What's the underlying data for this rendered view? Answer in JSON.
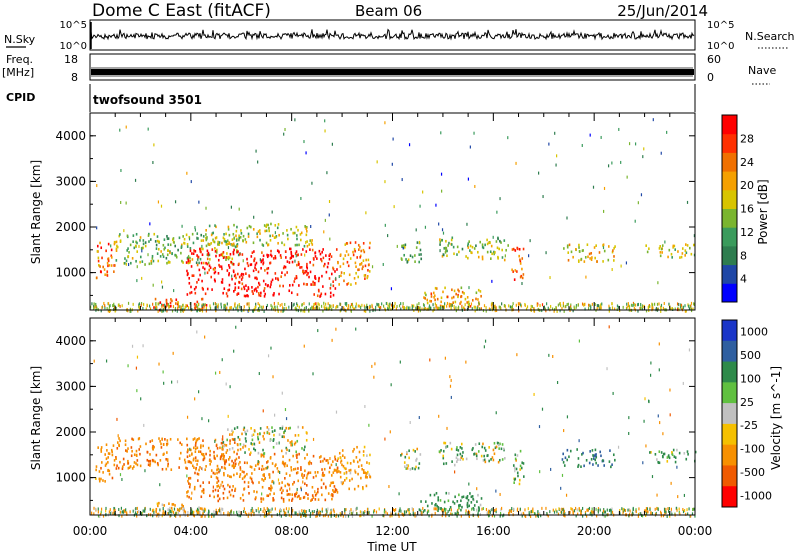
{
  "header": {
    "title": "Dome C East (fitACF)",
    "beam": "Beam 06",
    "date": "25/Jun/2014"
  },
  "time_axis": {
    "label": "Time UT",
    "ticks": [
      "00:00",
      "04:00",
      "08:00",
      "12:00",
      "16:00",
      "20:00",
      "00:00"
    ]
  },
  "status_panels": {
    "nsky": {
      "label": "N.Sky",
      "left_ticks": [
        "10^5",
        "10^0"
      ],
      "right_ticks": [
        "10^5",
        "10^0"
      ],
      "right_label": "N.Search"
    },
    "freq": {
      "label": "Freq.",
      "unit": "[MHz]",
      "left_ticks": [
        "18",
        "8"
      ],
      "right_ticks": [
        "60",
        "0"
      ],
      "right_label": "Nave"
    },
    "cpid": {
      "label": "CPID",
      "value": "twofsound 3501"
    }
  },
  "chart_data": [
    {
      "type": "heatmap",
      "title": "",
      "xlabel": "Time UT",
      "ylabel": "Slant Range [km]",
      "xlim": [
        0,
        24
      ],
      "ylim": [
        180,
        4500
      ],
      "yticks": [
        1000,
        2000,
        3000,
        4000
      ],
      "colorbar": {
        "label": "Power [dB]",
        "ticks": [
          "4",
          "8",
          "12",
          "16",
          "20",
          "24",
          "28"
        ],
        "range": [
          0,
          32
        ],
        "colors": [
          "#0000ff",
          "#1f47a6",
          "#2e7d4f",
          "#3a9b5c",
          "#7ab52f",
          "#d8c400",
          "#f5a000",
          "#f07000",
          "#ff3000",
          "#ff0000"
        ]
      },
      "echo_regions": [
        {
          "t0": 0.2,
          "t1": 1.0,
          "r0": 900,
          "r1": 1750,
          "level": 0.75
        },
        {
          "t0": 1.0,
          "t1": 6.0,
          "r0": 1200,
          "r1": 1900,
          "level": 0.45
        },
        {
          "t0": 3.8,
          "t1": 9.8,
          "r0": 500,
          "r1": 1550,
          "level": 0.95
        },
        {
          "t0": 9.8,
          "t1": 11.1,
          "r0": 750,
          "r1": 1700,
          "level": 0.7
        },
        {
          "t0": 4.5,
          "t1": 8.8,
          "r0": 1600,
          "r1": 2100,
          "level": 0.5
        },
        {
          "t0": 2.5,
          "t1": 4.6,
          "r0": 200,
          "r1": 480,
          "level": 0.85
        },
        {
          "t0": 13.0,
          "t1": 15.5,
          "r0": 230,
          "r1": 700,
          "level": 0.65
        },
        {
          "t0": 13.8,
          "t1": 16.6,
          "r0": 1300,
          "r1": 1800,
          "level": 0.45
        },
        {
          "t0": 16.7,
          "t1": 17.2,
          "r0": 850,
          "r1": 1650,
          "level": 0.8
        },
        {
          "t0": 18.7,
          "t1": 20.8,
          "r0": 1250,
          "r1": 1650,
          "level": 0.6
        },
        {
          "t0": 22.0,
          "t1": 24.0,
          "r0": 1350,
          "r1": 1650,
          "level": 0.5
        },
        {
          "t0": 12.3,
          "t1": 13.2,
          "r0": 1200,
          "r1": 1700,
          "level": 0.35
        }
      ]
    },
    {
      "type": "heatmap",
      "title": "",
      "xlabel": "Time UT",
      "ylabel": "Slant Range [km]",
      "xlim": [
        0,
        24
      ],
      "ylim": [
        180,
        4500
      ],
      "yticks": [
        1000,
        2000,
        3000,
        4000
      ],
      "colorbar": {
        "label": "Velocity [m s^-1]",
        "ticks": [
          "1000",
          "500",
          "100",
          "25",
          "-25",
          "-100",
          "-500",
          "-1000"
        ],
        "colors": [
          "#1a35c8",
          "#2f5fa0",
          "#2e8a4a",
          "#60c040",
          "#c0c0c0",
          "#f5c000",
          "#f79000",
          "#f05a00",
          "#ff0000"
        ]
      },
      "echo_regions": [
        {
          "t0": 0.2,
          "t1": 1.0,
          "r0": 900,
          "r1": 1750,
          "velocity": -200
        },
        {
          "t0": 1.0,
          "t1": 6.0,
          "r0": 1200,
          "r1": 1900,
          "velocity": -250
        },
        {
          "t0": 3.8,
          "t1": 9.8,
          "r0": 500,
          "r1": 1550,
          "velocity": -250
        },
        {
          "t0": 9.8,
          "t1": 11.1,
          "r0": 750,
          "r1": 1700,
          "velocity": -150
        },
        {
          "t0": 5.2,
          "t1": 8.6,
          "r0": 1550,
          "r1": 2150,
          "velocity": 0
        },
        {
          "t0": 2.5,
          "t1": 4.6,
          "r0": 200,
          "r1": 480,
          "velocity": -120
        },
        {
          "t0": 13.0,
          "t1": 15.5,
          "r0": 230,
          "r1": 700,
          "velocity": 150
        },
        {
          "t0": 13.8,
          "t1": 16.6,
          "r0": 1300,
          "r1": 1800,
          "velocity": 60
        },
        {
          "t0": 16.7,
          "t1": 17.2,
          "r0": 850,
          "r1": 1650,
          "velocity": 80
        },
        {
          "t0": 18.7,
          "t1": 20.8,
          "r0": 1250,
          "r1": 1650,
          "velocity": 300
        },
        {
          "t0": 22.0,
          "t1": 24.0,
          "r0": 1350,
          "r1": 1650,
          "velocity": 100
        },
        {
          "t0": 12.3,
          "t1": 13.2,
          "r0": 1200,
          "r1": 1700,
          "velocity": 40
        }
      ]
    }
  ]
}
